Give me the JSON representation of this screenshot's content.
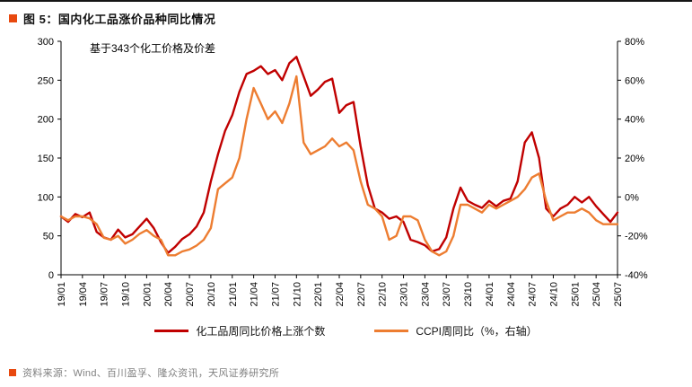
{
  "accent_color": "#e8490f",
  "header": {
    "title": "图 5：国内化工品涨价品种同比情况"
  },
  "chart_data": {
    "type": "line",
    "title": "国内化工品涨价品种同比情况",
    "annotation": "基于343个化工价格及价差",
    "grid": false,
    "legend_position": "bottom",
    "x_tick_every": 3,
    "x": [
      "19/01",
      "19/02",
      "19/03",
      "19/04",
      "19/05",
      "19/06",
      "19/07",
      "19/08",
      "19/09",
      "19/10",
      "19/11",
      "19/12",
      "20/01",
      "20/02",
      "20/03",
      "20/04",
      "20/05",
      "20/06",
      "20/07",
      "20/08",
      "20/09",
      "20/10",
      "20/11",
      "20/12",
      "21/01",
      "21/02",
      "21/03",
      "21/04",
      "21/05",
      "21/06",
      "21/07",
      "21/08",
      "21/09",
      "21/10",
      "21/11",
      "21/12",
      "22/01",
      "22/02",
      "22/03",
      "22/04",
      "22/05",
      "22/06",
      "22/07",
      "22/08",
      "22/09",
      "22/10",
      "22/11",
      "22/12",
      "23/01",
      "23/02",
      "23/03",
      "23/04",
      "23/05",
      "23/06",
      "23/07",
      "23/08",
      "23/09",
      "23/10",
      "23/11",
      "23/12",
      "24/01",
      "24/02",
      "24/03",
      "24/04",
      "24/05",
      "24/06",
      "24/07",
      "24/08",
      "24/09",
      "24/10",
      "24/11",
      "24/12",
      "25/01",
      "25/02",
      "25/03",
      "25/04",
      "25/05",
      "25/06",
      "25/07"
    ],
    "series": [
      {
        "name": "化工品周同比价格上涨个数",
        "axis": "left",
        "color": "#c00000",
        "values": [
          75,
          68,
          78,
          74,
          80,
          55,
          48,
          45,
          58,
          48,
          52,
          62,
          72,
          60,
          42,
          28,
          36,
          46,
          52,
          62,
          80,
          120,
          155,
          185,
          205,
          235,
          258,
          262,
          268,
          258,
          263,
          250,
          272,
          280,
          255,
          230,
          238,
          248,
          252,
          208,
          218,
          222,
          165,
          115,
          85,
          80,
          72,
          75,
          68,
          45,
          42,
          38,
          30,
          33,
          48,
          85,
          112,
          95,
          90,
          86,
          95,
          88,
          95,
          98,
          120,
          170,
          183,
          150,
          85,
          75,
          85,
          90,
          100,
          93,
          100,
          88,
          78,
          68,
          80
        ]
      },
      {
        "name": "CCPI周同比（%，右轴）",
        "axis": "right",
        "color": "#ed7d31",
        "values": [
          -10,
          -12,
          -10,
          -10,
          -11,
          -14,
          -21,
          -22,
          -20,
          -24,
          -22,
          -19,
          -17,
          -20,
          -22,
          -30,
          -30,
          -28,
          -27,
          -25,
          -22,
          -16,
          4,
          7,
          10,
          20,
          40,
          56,
          48,
          40,
          44,
          38,
          48,
          62,
          28,
          22,
          24,
          26,
          30,
          26,
          28,
          24,
          8,
          -4,
          -6,
          -10,
          -22,
          -20,
          -10,
          -10,
          -12,
          -22,
          -28,
          -30,
          -28,
          -20,
          -4,
          -4,
          -6,
          -8,
          -4,
          -6,
          -4,
          -2,
          0,
          4,
          10,
          12,
          -2,
          -12,
          -10,
          -8,
          -8,
          -6,
          -8,
          -12,
          -14,
          -14,
          -14
        ]
      }
    ],
    "left_axis": {
      "min": 0,
      "max": 300,
      "ticks": [
        0,
        50,
        100,
        150,
        200,
        250,
        300
      ]
    },
    "right_axis": {
      "min": -40,
      "max": 80,
      "ticks": [
        -40,
        -20,
        0,
        20,
        40,
        60,
        80
      ],
      "suffix": "%"
    },
    "x_ticks": [
      "19/01",
      "19/04",
      "19/07",
      "19/10",
      "20/01",
      "20/04",
      "20/07",
      "20/10",
      "21/01",
      "21/04",
      "21/07",
      "21/10",
      "22/01",
      "22/04",
      "22/07",
      "22/10",
      "23/01",
      "23/04",
      "23/07",
      "23/10",
      "24/01",
      "24/04",
      "24/07",
      "24/10",
      "25/01",
      "25/04",
      "25/07"
    ]
  },
  "legend": [
    {
      "label": "化工品周同比价格上涨个数",
      "color": "#c00000"
    },
    {
      "label": "CCPI周同比（%，右轴）",
      "color": "#ed7d31"
    }
  ],
  "footer": {
    "source": "资料来源：Wind、百川盈孚、隆众资讯，天风证券研究所"
  }
}
